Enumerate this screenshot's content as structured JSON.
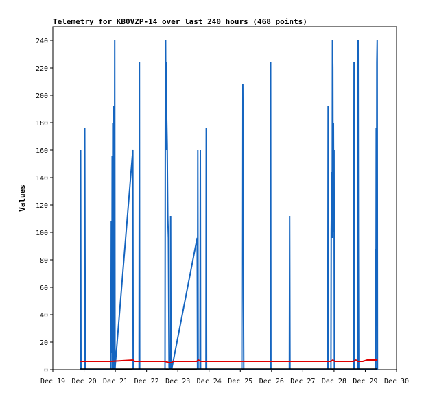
{
  "chart_data": {
    "type": "line",
    "title": "Telemetry for KB0VZP-14 over last 240 hours (468 points)",
    "xlabel": "",
    "ylabel": "Values",
    "x_tick_labels": [
      "Dec 19",
      "Dec 20",
      "Dec 21",
      "Dec 22",
      "Dec 23",
      "Dec 24",
      "Dec 25",
      "Dec 26",
      "Dec 27",
      "Dec 28",
      "Dec 29",
      "Dec 30"
    ],
    "xlim": [
      0,
      11
    ],
    "ylim": [
      0,
      250
    ],
    "y_ticks": [
      0,
      20,
      40,
      60,
      80,
      100,
      120,
      140,
      160,
      180,
      200,
      220,
      240
    ],
    "grid": false,
    "x_unit_note": "x values are fractional days since Dec 19",
    "series": [
      {
        "color": "#1565c0",
        "points": [
          [
            0.88,
            0
          ],
          [
            0.89,
            160
          ],
          [
            0.9,
            0
          ],
          [
            1.01,
            0
          ],
          [
            1.02,
            176
          ],
          [
            1.03,
            88
          ],
          [
            1.04,
            0
          ],
          [
            1.86,
            0
          ],
          [
            1.87,
            108
          ],
          [
            1.89,
            12
          ],
          [
            1.9,
            156
          ],
          [
            1.91,
            0
          ],
          [
            1.92,
            180
          ],
          [
            1.93,
            60
          ],
          [
            1.94,
            192
          ],
          [
            1.95,
            0
          ],
          [
            1.96,
            192
          ],
          [
            1.97,
            0
          ],
          [
            1.98,
            240
          ],
          [
            1.99,
            0
          ],
          [
            2.0,
            4
          ],
          [
            2.56,
            160
          ],
          [
            2.57,
            0
          ],
          [
            2.76,
            0
          ],
          [
            2.77,
            224
          ],
          [
            2.78,
            0
          ],
          [
            3.59,
            0
          ],
          [
            3.6,
            192
          ],
          [
            3.61,
            240
          ],
          [
            3.62,
            160
          ],
          [
            3.63,
            224
          ],
          [
            3.64,
            188
          ],
          [
            3.66,
            164
          ],
          [
            3.68,
            110
          ],
          [
            3.7,
            96
          ],
          [
            3.71,
            40
          ],
          [
            3.72,
            2
          ],
          [
            3.74,
            0
          ],
          [
            3.76,
            0
          ],
          [
            3.77,
            112
          ],
          [
            3.78,
            0
          ],
          [
            3.8,
            0
          ],
          [
            4.62,
            96
          ],
          [
            4.63,
            0
          ],
          [
            4.64,
            160
          ],
          [
            4.65,
            0
          ],
          [
            4.71,
            0
          ],
          [
            4.72,
            160
          ],
          [
            4.73,
            0
          ],
          [
            4.9,
            0
          ],
          [
            4.91,
            176
          ],
          [
            4.92,
            0
          ],
          [
            6.05,
            0
          ],
          [
            6.06,
            200
          ],
          [
            6.07,
            104
          ],
          [
            6.08,
            208
          ],
          [
            6.09,
            150
          ],
          [
            6.1,
            52
          ],
          [
            6.11,
            0
          ],
          [
            6.96,
            0
          ],
          [
            6.97,
            224
          ],
          [
            6.98,
            0
          ],
          [
            7.57,
            0
          ],
          [
            7.58,
            112
          ],
          [
            7.59,
            0
          ],
          [
            8.8,
            0
          ],
          [
            8.81,
            192
          ],
          [
            8.82,
            0
          ],
          [
            8.9,
            0
          ],
          [
            8.91,
            100
          ],
          [
            8.93,
            144
          ],
          [
            8.94,
            96
          ],
          [
            8.95,
            240
          ],
          [
            8.96,
            220
          ],
          [
            8.97,
            120
          ],
          [
            8.98,
            180
          ],
          [
            8.99,
            100
          ],
          [
            9.0,
            160
          ],
          [
            9.01,
            0
          ],
          [
            9.63,
            0
          ],
          [
            9.64,
            224
          ],
          [
            9.65,
            0
          ],
          [
            9.76,
            0
          ],
          [
            9.77,
            240
          ],
          [
            9.78,
            96
          ],
          [
            9.79,
            0
          ],
          [
            10.32,
            0
          ],
          [
            10.33,
            88
          ],
          [
            10.34,
            0
          ],
          [
            10.35,
            176
          ],
          [
            10.36,
            32
          ],
          [
            10.37,
            224
          ],
          [
            10.38,
            240
          ],
          [
            10.39,
            0
          ]
        ]
      },
      {
        "color": "#e00000",
        "points": [
          [
            0.88,
            6
          ],
          [
            1.86,
            6
          ],
          [
            2.56,
            7
          ],
          [
            2.62,
            6
          ],
          [
            3.59,
            6
          ],
          [
            3.72,
            5
          ],
          [
            3.8,
            5
          ],
          [
            3.84,
            6
          ],
          [
            4.6,
            6
          ],
          [
            4.66,
            7
          ],
          [
            4.72,
            6
          ],
          [
            7.0,
            6
          ],
          [
            8.9,
            6
          ],
          [
            8.96,
            7
          ],
          [
            9.02,
            6
          ],
          [
            9.62,
            6
          ],
          [
            9.7,
            7
          ],
          [
            9.76,
            6
          ],
          [
            9.92,
            6
          ],
          [
            10.06,
            7
          ],
          [
            10.3,
            7
          ],
          [
            10.39,
            7
          ]
        ]
      }
    ]
  }
}
